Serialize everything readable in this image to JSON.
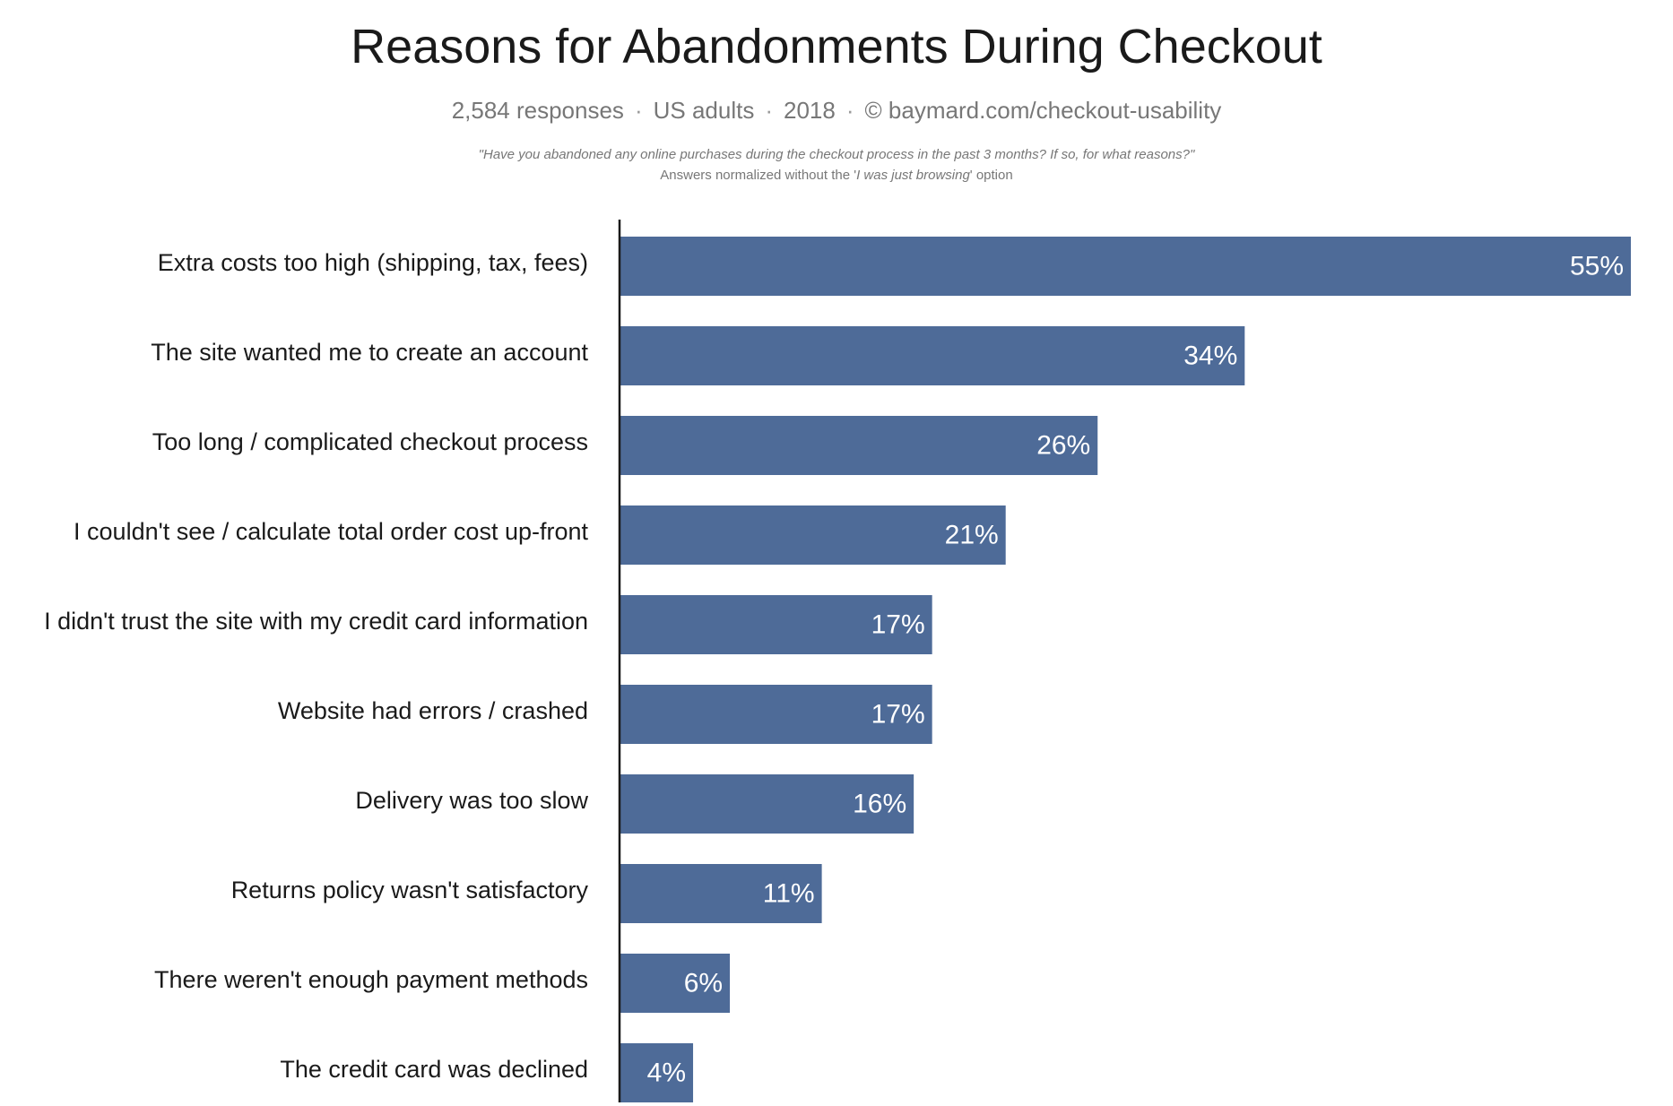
{
  "chart_data": {
    "type": "bar",
    "orientation": "horizontal",
    "title": "Reasons for Abandonments During Checkout",
    "subtitle_parts": [
      "2,584 responses",
      "US adults",
      "2018",
      "© baymard.com/checkout-usability"
    ],
    "subtitle_separator": "·",
    "question": "\"Have you abandoned any online purchases during the checkout process in the past 3 months? If so, for what reasons?\"",
    "note_prefix": "Answers normalized without the '",
    "note_option": "I was just browsing",
    "note_suffix": "' option",
    "categories": [
      "Extra costs too high (shipping, tax, fees)",
      "The site wanted me to create an account",
      "Too long / complicated checkout process",
      "I couldn't see / calculate total order cost up-front",
      "I didn't trust the site with my credit card information",
      "Website had errors / crashed",
      "Delivery was too slow",
      "Returns policy wasn't satisfactory",
      "There weren't enough payment methods",
      "The credit card was declined"
    ],
    "values": [
      55,
      34,
      26,
      21,
      17,
      17,
      16,
      11,
      6,
      4
    ],
    "value_labels": [
      "55%",
      "34%",
      "26%",
      "21%",
      "17%",
      "17%",
      "16%",
      "11%",
      "6%",
      "4%"
    ],
    "xlabel": "",
    "ylabel": "",
    "xlim": [
      0,
      55
    ],
    "bar_color": "#4e6b98",
    "grid": false,
    "legend": false
  }
}
